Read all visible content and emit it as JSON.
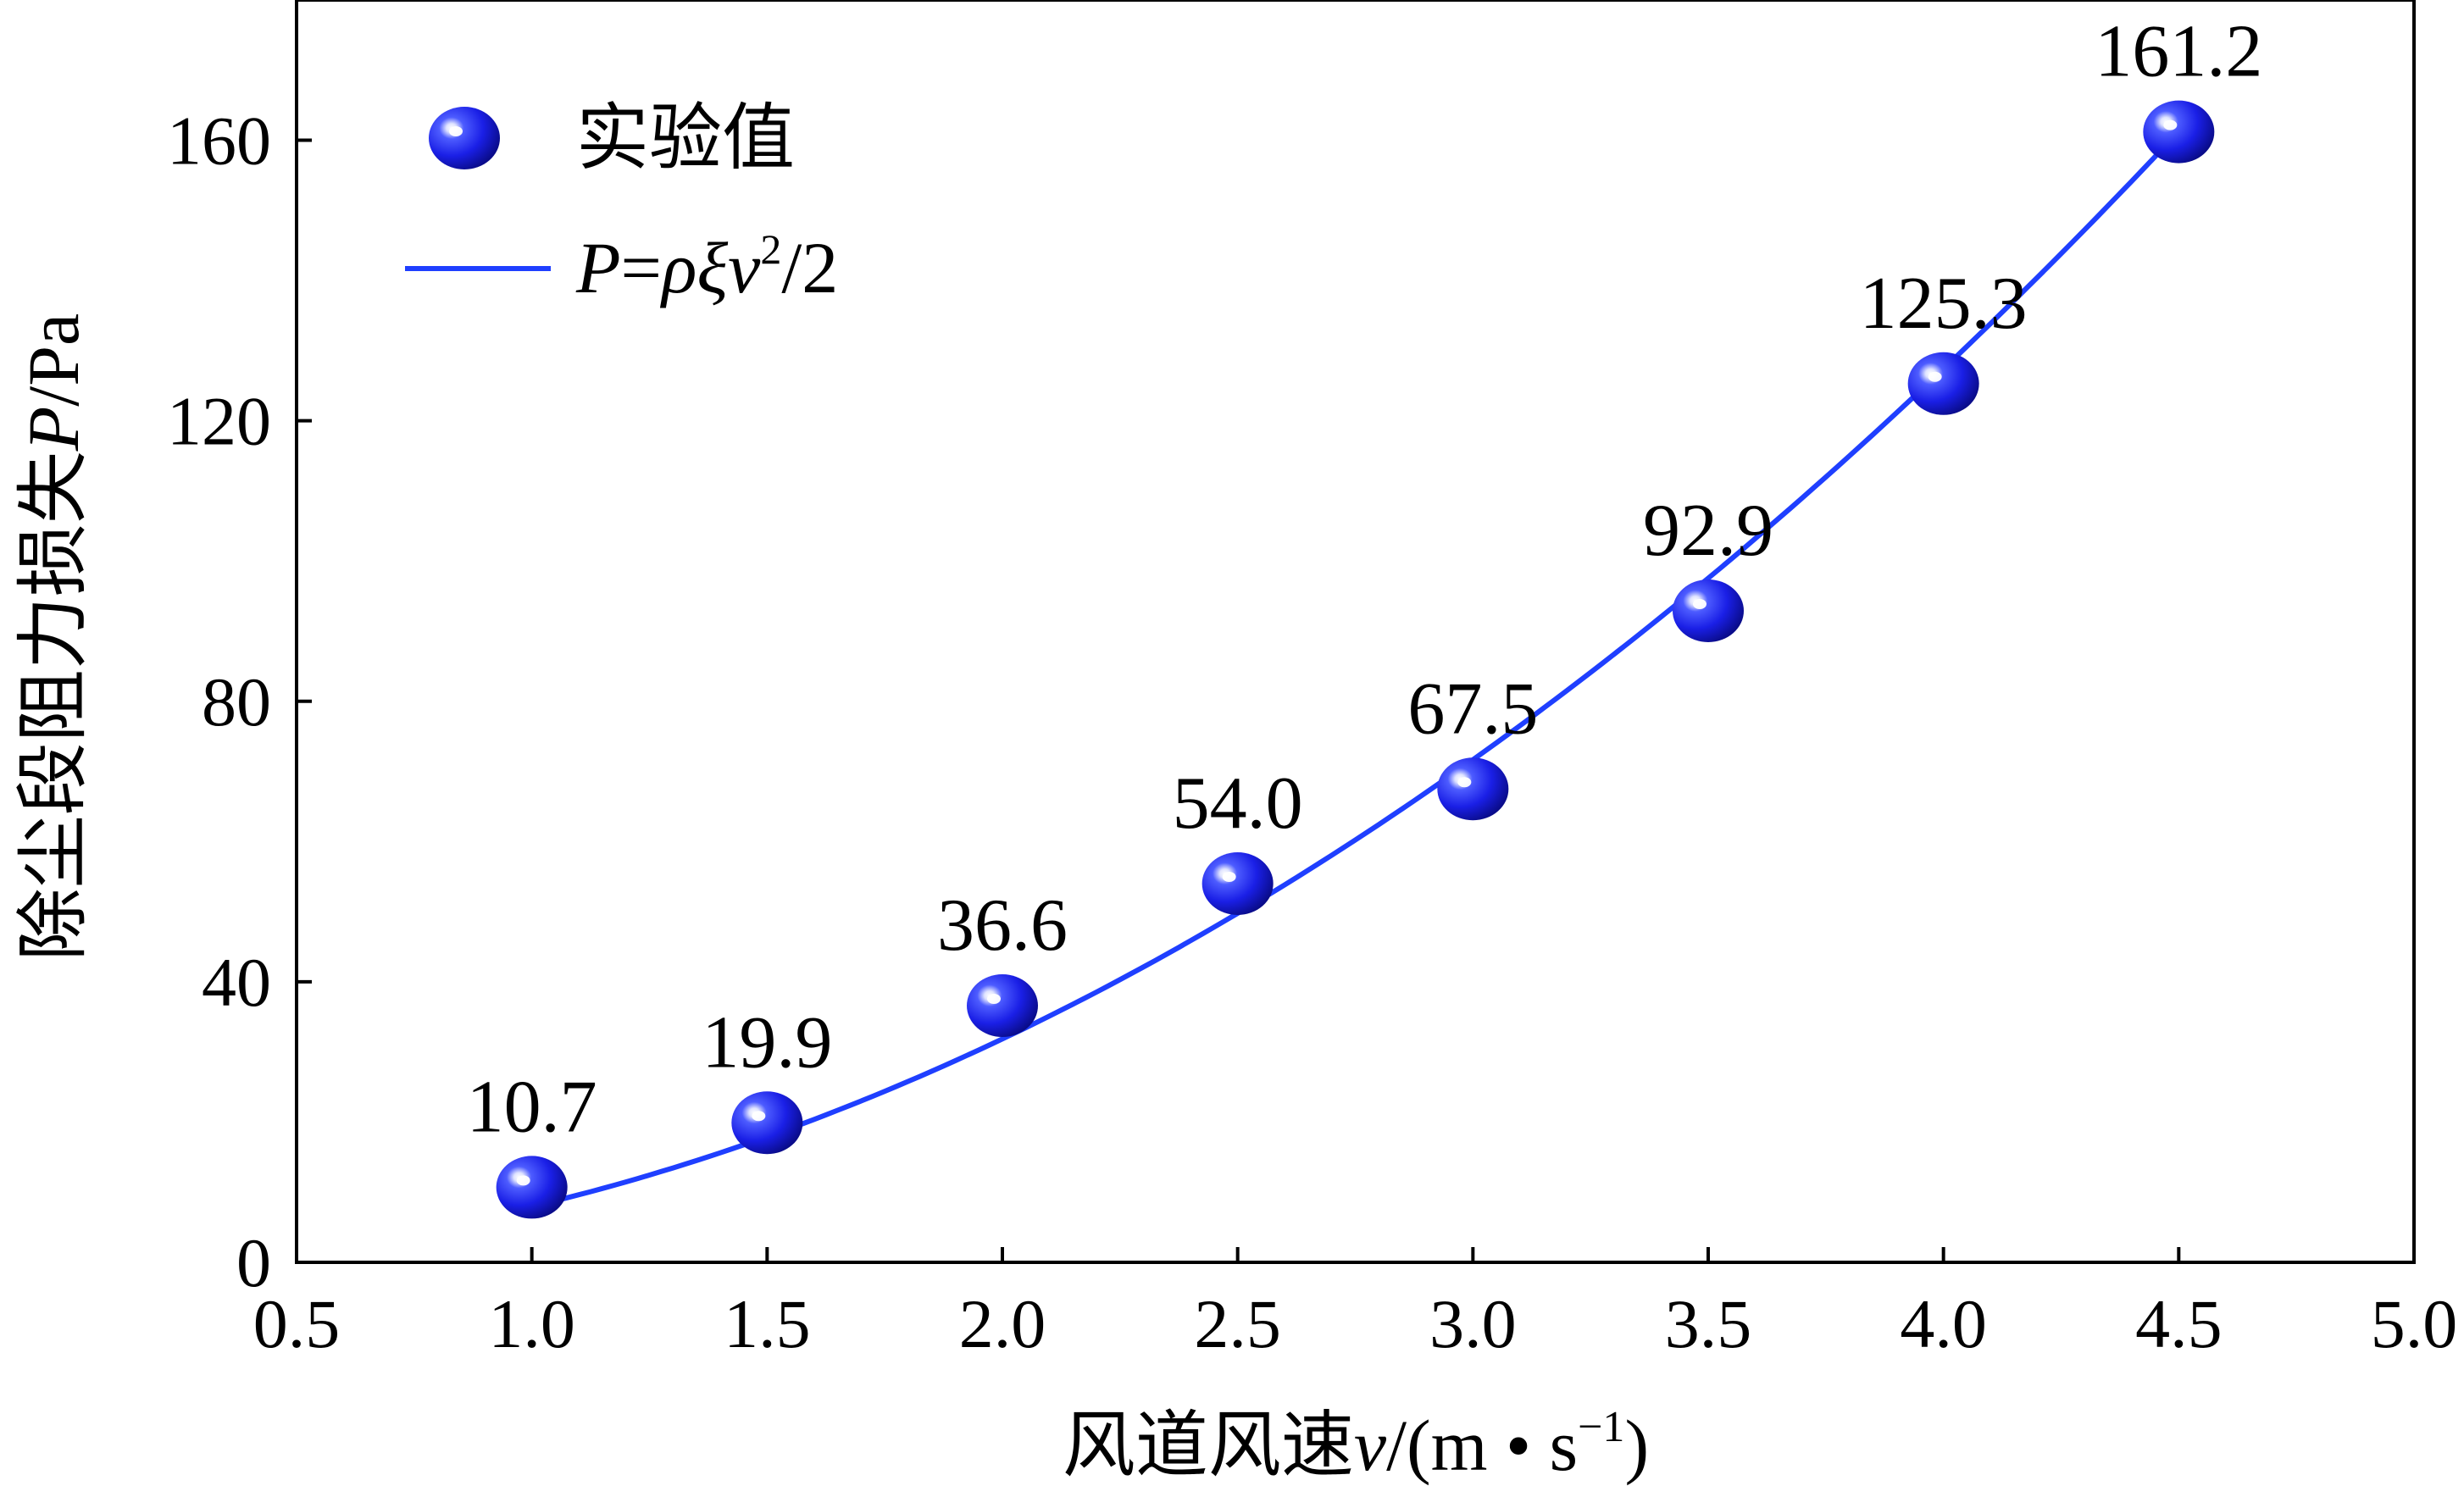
{
  "chart_data": {
    "type": "scatter",
    "xlabel": "风道风速v/(m • s⁻¹)",
    "xlabel_parts": {
      "cn": "风道风速",
      "var": "v",
      "unit_open": "/(m • s",
      "unit_exp": "−1",
      "unit_close": ")"
    },
    "ylabel": "除尘段阻力损失P/Pa",
    "ylabel_parts": {
      "cn": "除尘段阻力损失",
      "var": "P",
      "unit": "/Pa"
    },
    "xlim": [
      0.5,
      5.0
    ],
    "ylim": [
      0,
      180
    ],
    "x_ticks": [
      0.5,
      1.0,
      1.5,
      2.0,
      2.5,
      3.0,
      3.5,
      4.0,
      4.5,
      5.0
    ],
    "x_tick_labels": [
      "0.5",
      "1.0",
      "1.5",
      "2.0",
      "2.5",
      "3.0",
      "3.5",
      "4.0",
      "4.5",
      "5.0"
    ],
    "y_ticks": [
      0,
      40,
      80,
      120,
      160
    ],
    "y_tick_labels": [
      "0",
      "40",
      "80",
      "120",
      "160"
    ],
    "grid": false,
    "legend_position": "top-left",
    "series": [
      {
        "name": "实验值",
        "kind": "scatter",
        "color": "#1a1aff",
        "x": [
          1.0,
          1.5,
          2.0,
          2.5,
          3.0,
          3.5,
          4.0,
          4.5
        ],
        "y": [
          10.7,
          19.9,
          36.6,
          54.0,
          67.5,
          92.9,
          125.3,
          161.2
        ],
        "data_labels": [
          "10.7",
          "19.9",
          "36.6",
          "54.0",
          "67.5",
          "92.9",
          "125.3",
          "161.2"
        ]
      },
      {
        "name": "P=ρξv²/2",
        "name_parts": {
          "p": "P",
          "eq": "=",
          "rho_xi": "ρξ",
          "v": "v",
          "exp": "2",
          "tail": "/2"
        },
        "kind": "line",
        "color": "#1f3fff",
        "formula_coefficient": 7.963,
        "x_range": [
          1.0,
          4.5
        ]
      }
    ]
  }
}
